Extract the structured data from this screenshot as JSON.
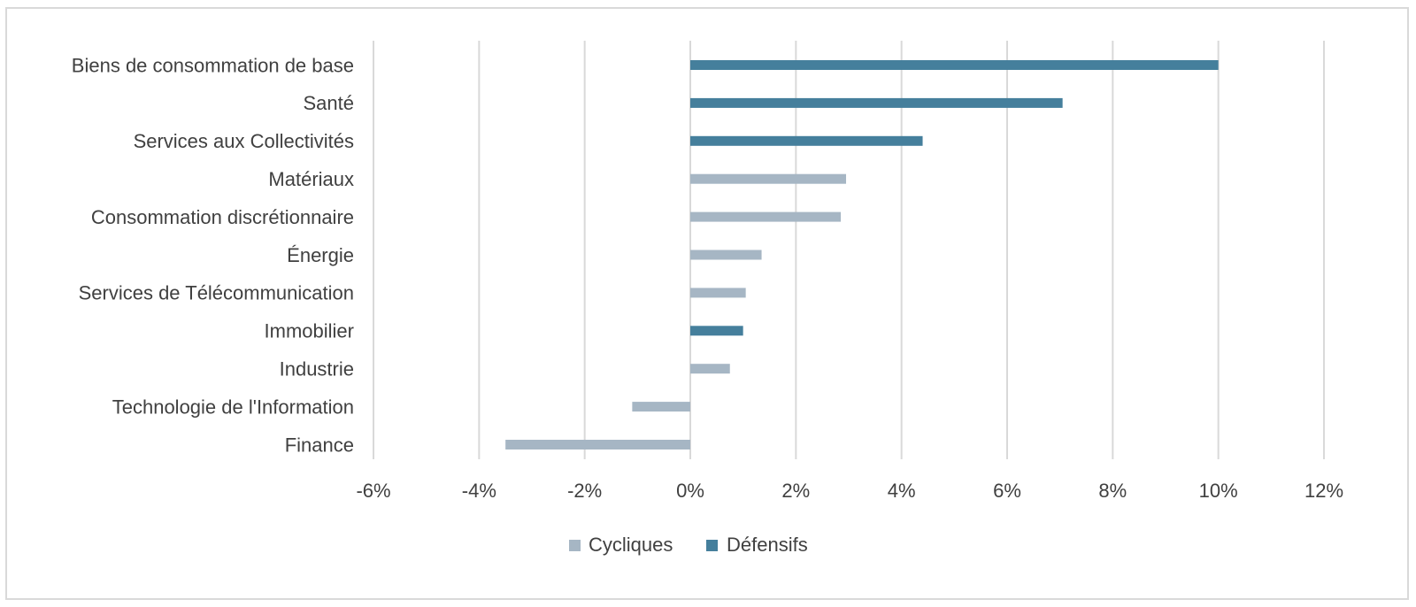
{
  "chart_data": {
    "type": "bar",
    "orientation": "horizontal",
    "title": "",
    "xlabel": "",
    "ylabel": "",
    "xlim": [
      -6,
      12
    ],
    "tick_step": 2,
    "tick_labels": [
      "-6%",
      "-4%",
      "-2%",
      "0%",
      "2%",
      "4%",
      "6%",
      "8%",
      "10%",
      "12%"
    ],
    "grid": "vertical",
    "legend_position": "bottom",
    "colors": {
      "Cycliques": "#a6b6c4",
      "Défensifs": "#457f9c"
    },
    "series": [
      {
        "name": "Cycliques"
      },
      {
        "name": "Défensifs"
      }
    ],
    "categories": [
      "Biens de consommation de base",
      "Santé",
      "Services aux Collectivités",
      "Matériaux",
      "Consommation discrétionnaire",
      "Énergie",
      "Services de Télécommunication",
      "Immobilier",
      "Industrie",
      "Technologie de l'Information",
      "Finance"
    ],
    "bars": [
      {
        "category": "Biens de consommation de base",
        "series": "Défensifs",
        "value": 10.0
      },
      {
        "category": "Santé",
        "series": "Défensifs",
        "value": 7.05
      },
      {
        "category": "Services aux Collectivités",
        "series": "Défensifs",
        "value": 4.4
      },
      {
        "category": "Matériaux",
        "series": "Cycliques",
        "value": 2.95
      },
      {
        "category": "Consommation discrétionnaire",
        "series": "Cycliques",
        "value": 2.85
      },
      {
        "category": "Énergie",
        "series": "Cycliques",
        "value": 1.35
      },
      {
        "category": "Services de Télécommunication",
        "series": "Cycliques",
        "value": 1.05
      },
      {
        "category": "Immobilier",
        "series": "Défensifs",
        "value": 1.0
      },
      {
        "category": "Industrie",
        "series": "Cycliques",
        "value": 0.75
      },
      {
        "category": "Technologie de l'Information",
        "series": "Cycliques",
        "value": -1.1
      },
      {
        "category": "Finance",
        "series": "Cycliques",
        "value": -3.5
      }
    ]
  }
}
